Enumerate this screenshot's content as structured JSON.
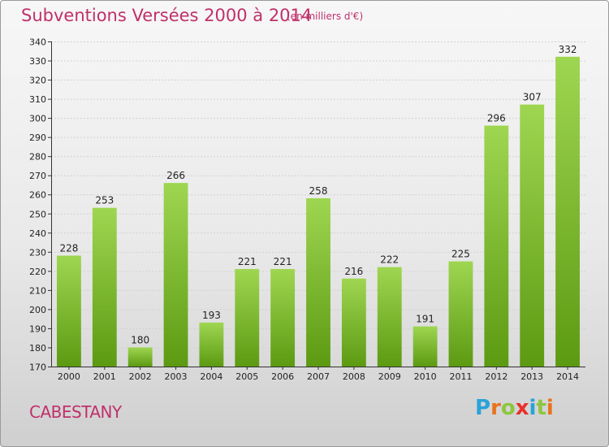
{
  "header": {
    "title": "Subventions Versées 2000 à 2014",
    "unit": "(en milliers d'€)"
  },
  "footer": {
    "commune": "CABESTANY",
    "logo": {
      "letters": [
        "P",
        "r",
        "o",
        "x",
        "i",
        "t",
        "i"
      ],
      "colors": [
        "#2aa3d8",
        "#e8731c",
        "#8dc63f",
        "#e8312c",
        "#2aa3d8",
        "#8dc63f",
        "#e8731c"
      ]
    }
  },
  "colors": {
    "bar_light": "#9fd651",
    "bar_dark": "#5c9a12",
    "title": "#c0306a"
  },
  "chart_data": {
    "type": "bar",
    "categories": [
      "2000",
      "2001",
      "2002",
      "2003",
      "2004",
      "2005",
      "2006",
      "2007",
      "2008",
      "2009",
      "2010",
      "2011",
      "2012",
      "2013",
      "2014"
    ],
    "values": [
      228,
      253,
      180,
      266,
      193,
      221,
      221,
      258,
      216,
      222,
      191,
      225,
      296,
      307,
      332
    ],
    "ylim": [
      170,
      340
    ],
    "yticks": [
      170,
      180,
      190,
      200,
      210,
      220,
      230,
      240,
      250,
      260,
      270,
      280,
      290,
      300,
      310,
      320,
      330,
      340
    ],
    "grid": true
  }
}
